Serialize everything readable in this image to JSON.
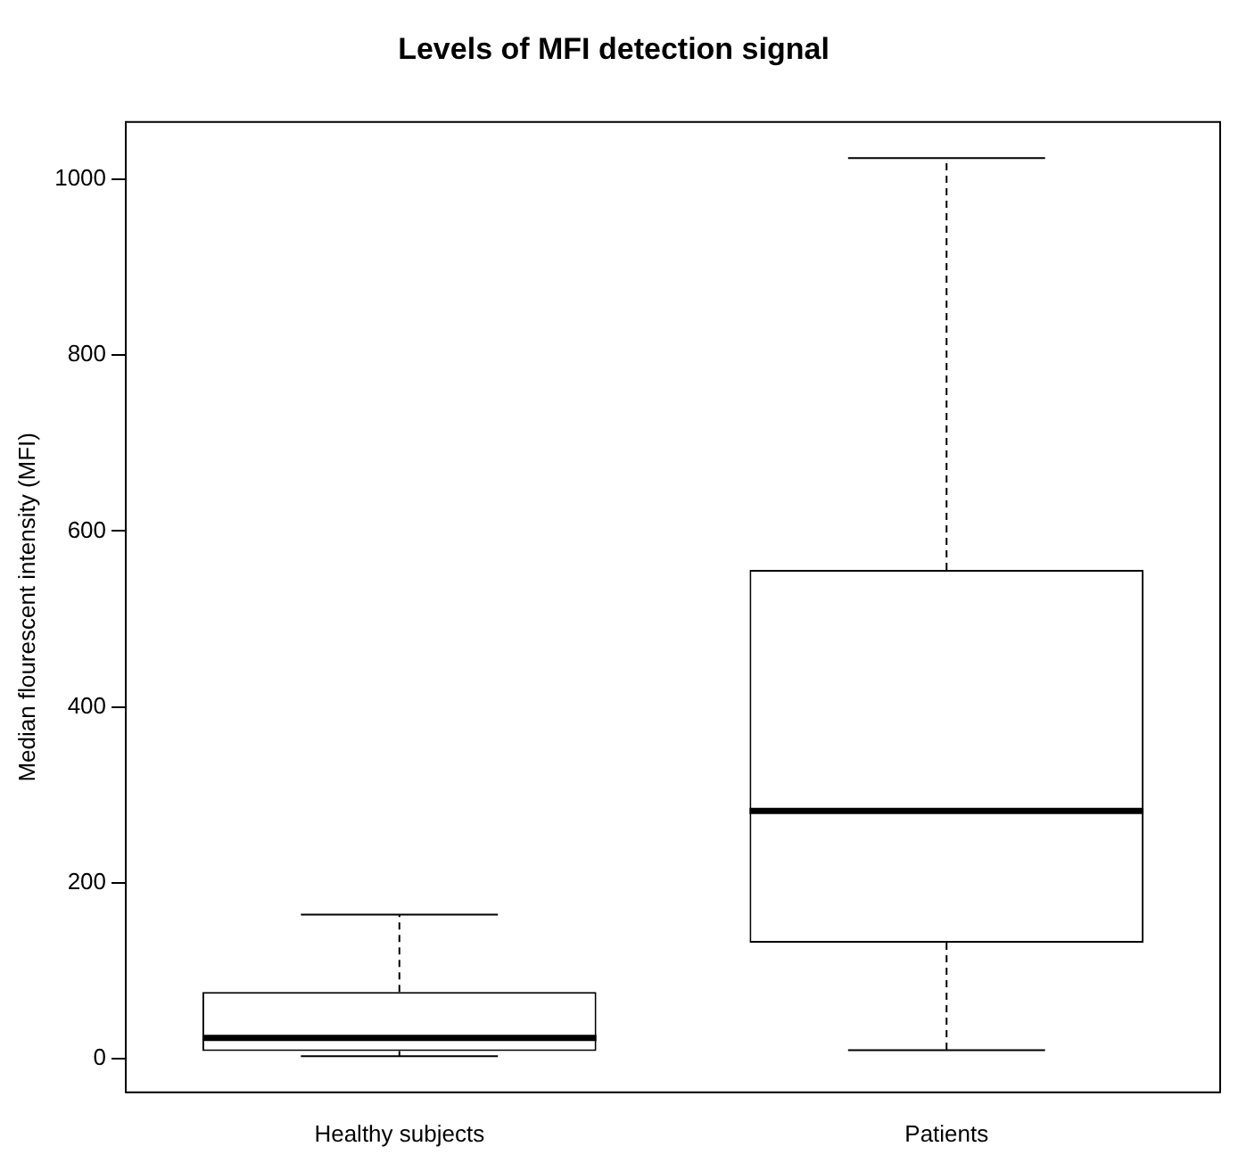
{
  "chart_data": {
    "type": "box",
    "title": "Levels of MFI detection signal",
    "ylabel": "Median flourescent intensity (MFI)",
    "categories": [
      "Healthy subjects",
      "Patients"
    ],
    "boxes": [
      {
        "low": 3,
        "q1": 9,
        "median": 24,
        "q3": 76,
        "high": 164
      },
      {
        "low": 10,
        "q1": 132,
        "median": 282,
        "q3": 556,
        "high": 1024
      }
    ],
    "ylim": [
      -38,
      1065
    ],
    "yticks": [
      0,
      200,
      400,
      600,
      800,
      1000
    ]
  }
}
